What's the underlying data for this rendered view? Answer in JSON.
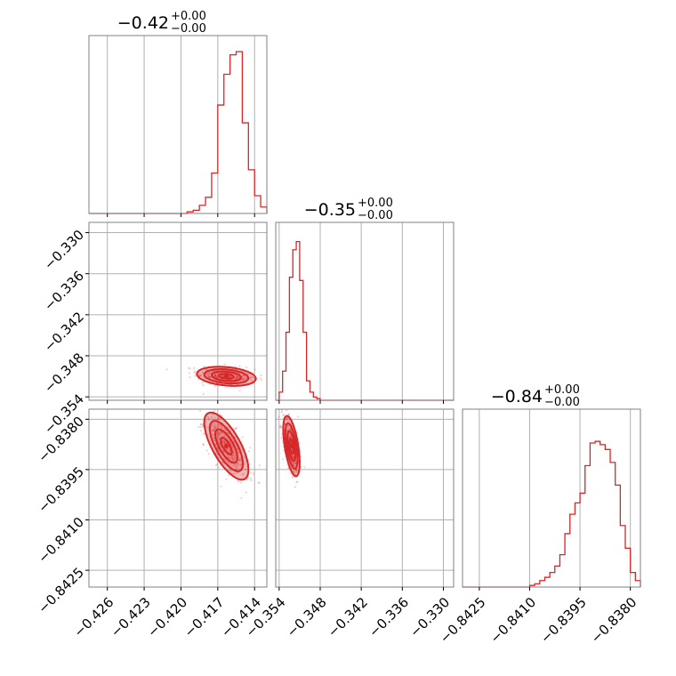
{
  "chart_data": {
    "type": "corner",
    "color": "#d62728",
    "grid": true,
    "parameters": [
      {
        "title": {
          "value": "−0.42",
          "plus": "+0.00",
          "minus": "−0.00"
        },
        "range": [
          -0.4275,
          -0.413
        ],
        "ticks": [
          -0.426,
          -0.423,
          -0.42,
          -0.417,
          -0.414
        ],
        "tick_labels": [
          "−0.426",
          "−0.423",
          "−0.420",
          "−0.417",
          "−0.414"
        ],
        "hist": {
          "edges": [
            -0.4195,
            -0.419,
            -0.4185,
            -0.418,
            -0.4175,
            -0.417,
            -0.4165,
            -0.416,
            -0.4155,
            -0.415,
            -0.4145,
            -0.414,
            -0.4135,
            -0.413
          ],
          "counts": [
            0.01,
            0.02,
            0.05,
            0.1,
            0.25,
            0.67,
            0.86,
            0.98,
            1.0,
            0.56,
            0.27,
            0.11,
            0.04
          ]
        }
      },
      {
        "title": {
          "value": "−0.35",
          "plus": "+0.00",
          "minus": "−0.00"
        },
        "range": [
          -0.3545,
          -0.3285
        ],
        "ticks": [
          -0.354,
          -0.348,
          -0.342,
          -0.336,
          -0.33
        ],
        "tick_labels": [
          "−0.354",
          "−0.348",
          "−0.342",
          "−0.336",
          "−0.330"
        ],
        "hist": {
          "edges": [
            -0.354,
            -0.3535,
            -0.353,
            -0.3525,
            -0.352,
            -0.3515,
            -0.351,
            -0.3505,
            -0.35,
            -0.3495,
            -0.349,
            -0.3485,
            -0.348
          ],
          "counts": [
            0.05,
            0.18,
            0.42,
            0.76,
            0.93,
            0.98,
            0.74,
            0.42,
            0.12,
            0.05,
            0.02,
            0.01
          ]
        }
      },
      {
        "title": {
          "value": "−0.84",
          "plus": "+0.00",
          "minus": "−0.00"
        },
        "range": [
          -0.843,
          -0.8377
        ],
        "ticks": [
          -0.8425,
          -0.841,
          -0.8395,
          -0.838
        ],
        "tick_labels": [
          "−0.8425",
          "−0.8410",
          "−0.8395",
          "−0.8380"
        ],
        "hist": {
          "edges": [
            -0.841,
            -0.84085,
            -0.8407,
            -0.84055,
            -0.8404,
            -0.84025,
            -0.8401,
            -0.83995,
            -0.8398,
            -0.83965,
            -0.8395,
            -0.83935,
            -0.8392,
            -0.83905,
            -0.8389,
            -0.83875,
            -0.8386,
            -0.83845,
            -0.8383,
            -0.83815,
            -0.838,
            -0.83785,
            -0.8377
          ],
          "counts": [
            0.01,
            0.02,
            0.04,
            0.06,
            0.09,
            0.13,
            0.2,
            0.33,
            0.45,
            0.52,
            0.58,
            0.75,
            0.89,
            0.9,
            0.88,
            0.85,
            0.77,
            0.63,
            0.38,
            0.24,
            0.09,
            0.04
          ]
        }
      }
    ],
    "pairs": [
      {
        "x_param": 0,
        "y_param": 1,
        "center": [
          -0.4163,
          -0.351
        ],
        "sigma": [
          0.0012,
          0.0007
        ],
        "correlation": -0.25
      },
      {
        "x_param": 0,
        "y_param": 2,
        "center": [
          -0.4163,
          -0.8388
        ],
        "sigma": [
          0.0009,
          0.0005
        ],
        "correlation": -0.7
      },
      {
        "x_param": 1,
        "y_param": 2,
        "center": [
          -0.3522,
          -0.8388
        ],
        "sigma": [
          0.0006,
          0.00045
        ],
        "correlation": -0.55
      }
    ],
    "contour_levels": [
      0.5,
      1.0,
      1.5,
      2.0
    ]
  }
}
